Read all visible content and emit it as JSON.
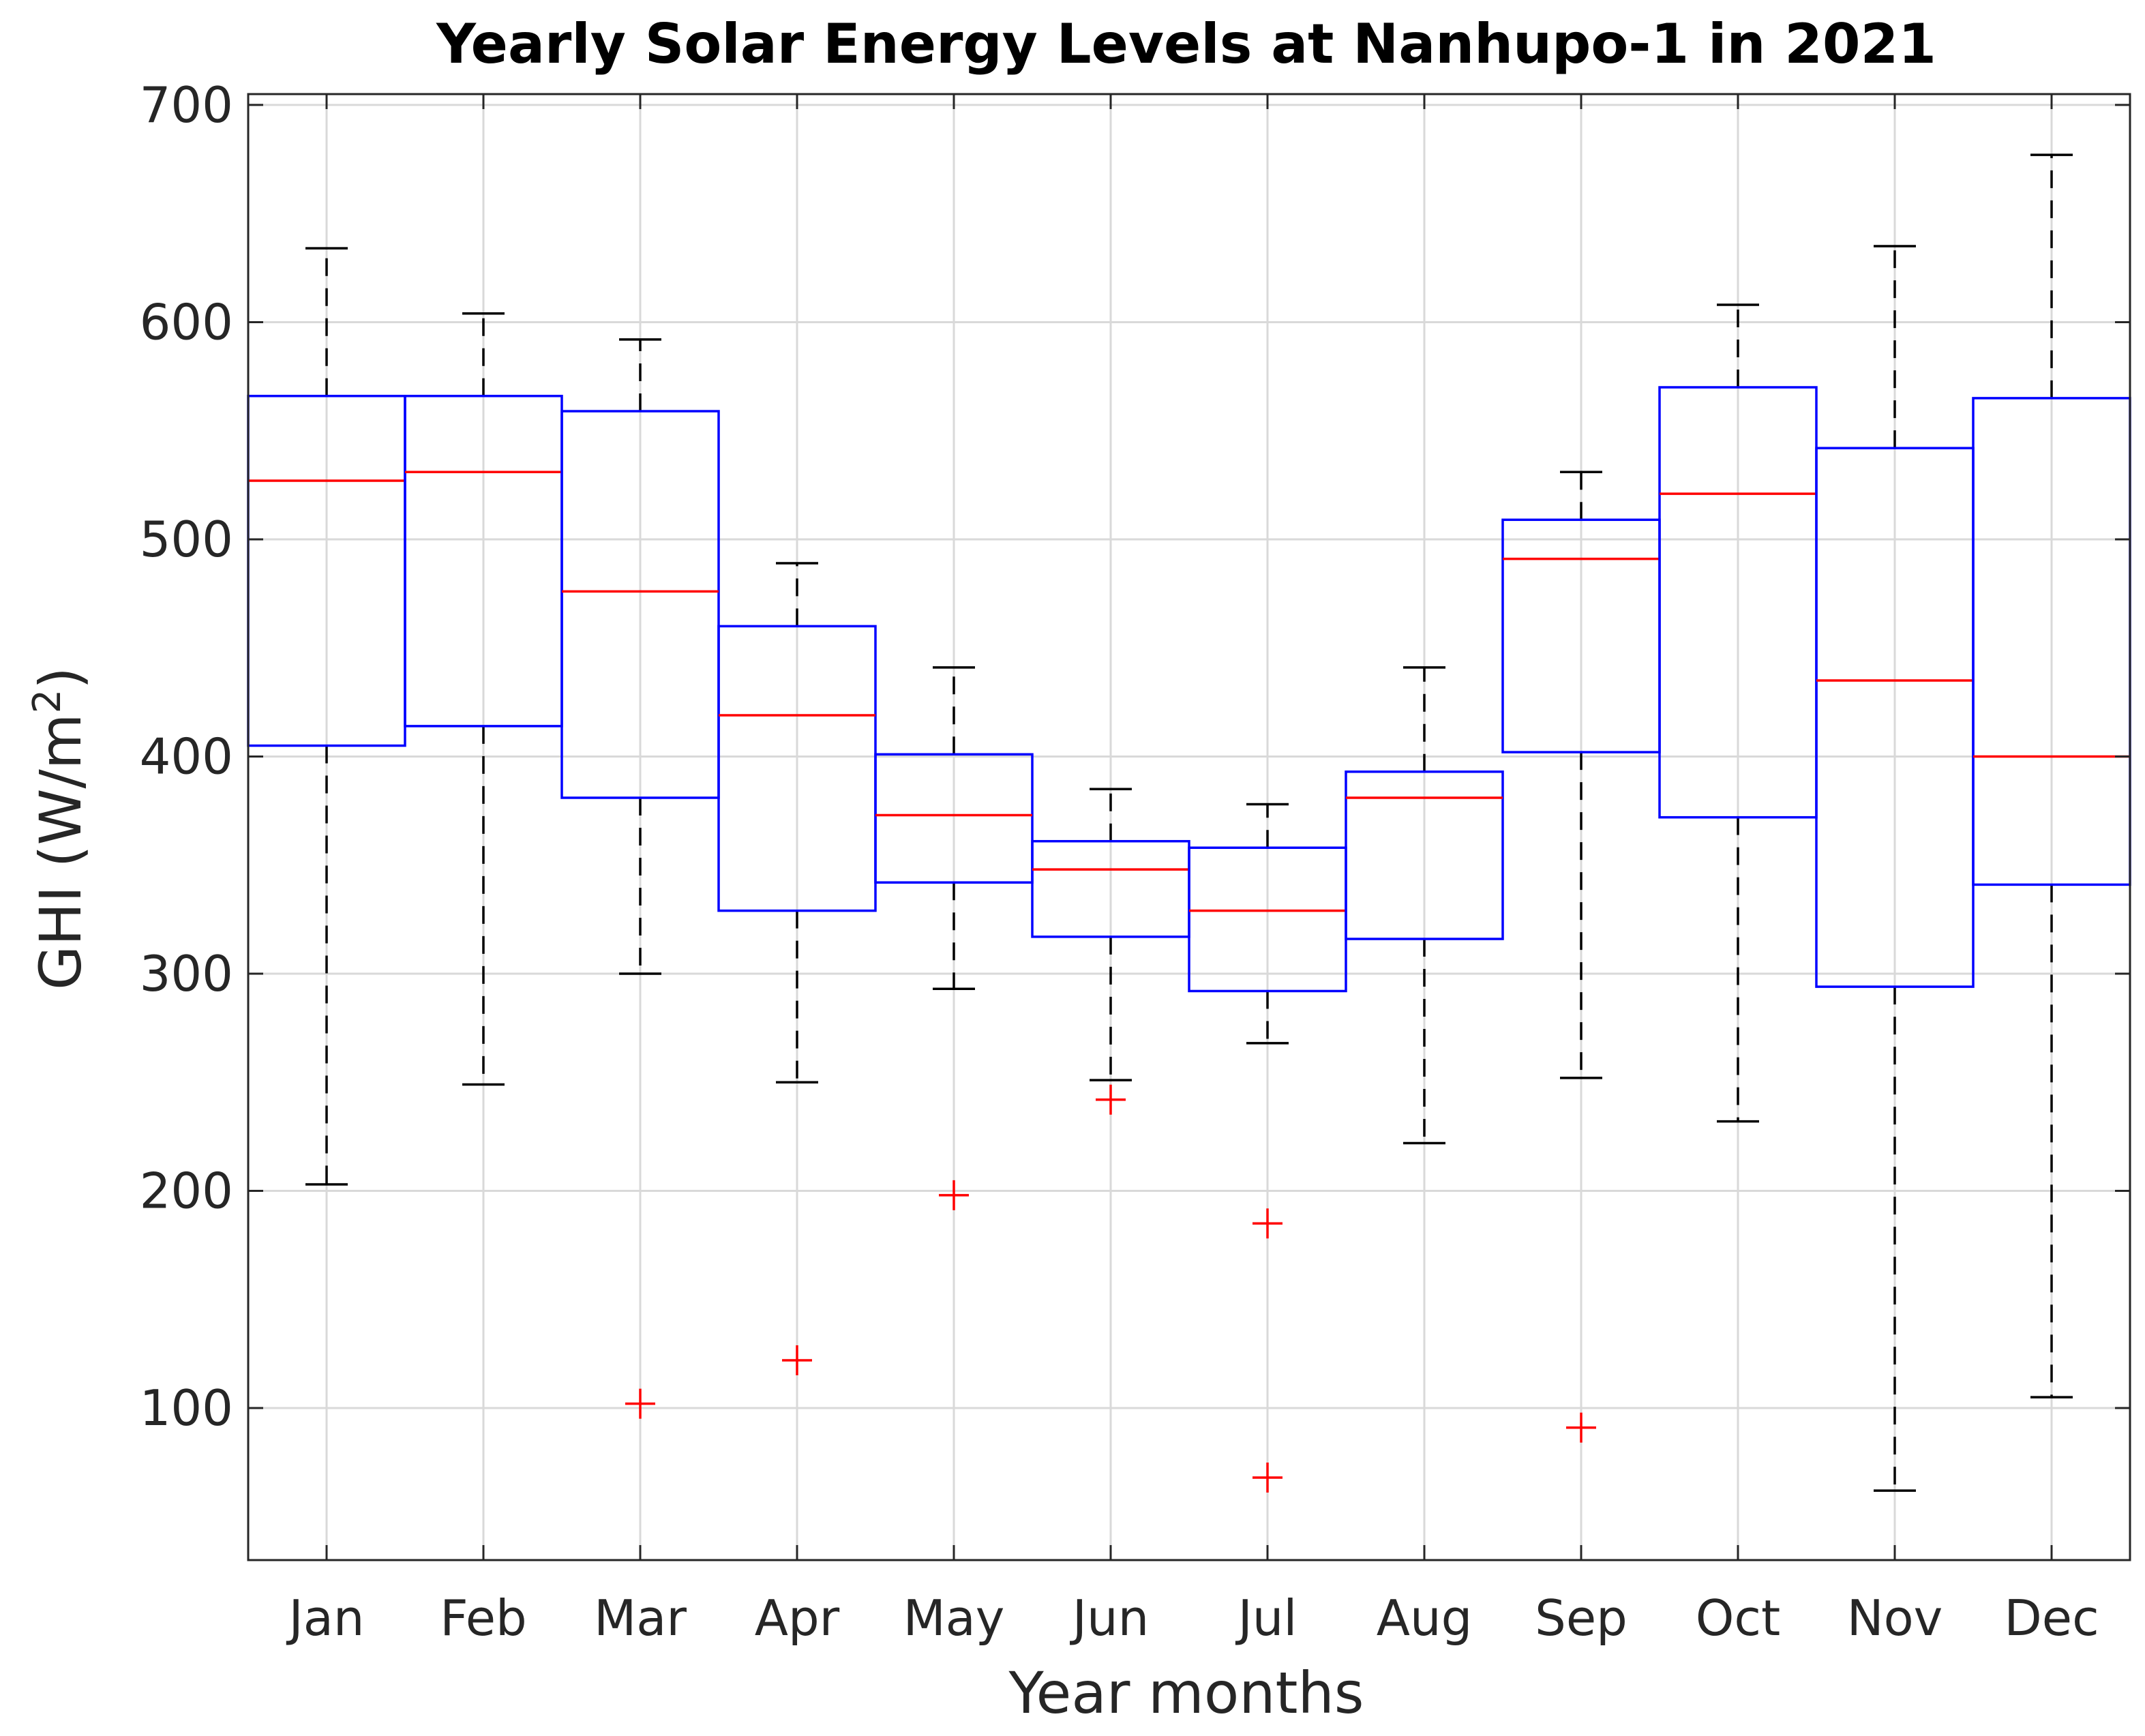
{
  "chart_data": {
    "type": "boxplot",
    "title": "Yearly Solar Energy Levels at Nanhupo-1 in 2021",
    "xlabel": "Year months",
    "ylabel": "GHI (W/m",
    "ylabel_superscript": "2",
    "ylabel_suffix": ")",
    "ylim": [
      30,
      705
    ],
    "yticks": [
      100,
      200,
      300,
      400,
      500,
      600,
      700
    ],
    "yticklabels": [
      "100",
      "200",
      "300",
      "400",
      "500",
      "600",
      "700"
    ],
    "grid": true,
    "categories": [
      "Jan",
      "Feb",
      "Mar",
      "Apr",
      "May",
      "Jun",
      "Jul",
      "Aug",
      "Sep",
      "Oct",
      "Nov",
      "Dec"
    ],
    "boxes": [
      {
        "month": "Jan",
        "lower_whisker": 203,
        "q1": 405,
        "median": 527,
        "q3": 566,
        "upper_whisker": 634,
        "outliers": []
      },
      {
        "month": "Feb",
        "lower_whisker": 249,
        "q1": 414,
        "median": 531,
        "q3": 566,
        "upper_whisker": 604,
        "outliers": []
      },
      {
        "month": "Mar",
        "lower_whisker": 300,
        "q1": 381,
        "median": 476,
        "q3": 559,
        "upper_whisker": 592,
        "outliers": [
          102
        ]
      },
      {
        "month": "Apr",
        "lower_whisker": 250,
        "q1": 329,
        "median": 419,
        "q3": 460,
        "upper_whisker": 489,
        "outliers": [
          122
        ]
      },
      {
        "month": "May",
        "lower_whisker": 293,
        "q1": 342,
        "median": 373,
        "q3": 401,
        "upper_whisker": 441,
        "outliers": [
          198
        ]
      },
      {
        "month": "Jun",
        "lower_whisker": 251,
        "q1": 317,
        "median": 348,
        "q3": 361,
        "upper_whisker": 385,
        "outliers": [
          242
        ]
      },
      {
        "month": "Jul",
        "lower_whisker": 268,
        "q1": 292,
        "median": 329,
        "q3": 358,
        "upper_whisker": 378,
        "outliers": [
          185,
          68
        ]
      },
      {
        "month": "Aug",
        "lower_whisker": 222,
        "q1": 316,
        "median": 381,
        "q3": 393,
        "upper_whisker": 441,
        "outliers": []
      },
      {
        "month": "Sep",
        "lower_whisker": 252,
        "q1": 402,
        "median": 491,
        "q3": 509,
        "upper_whisker": 531,
        "outliers": [
          91
        ]
      },
      {
        "month": "Oct",
        "lower_whisker": 232,
        "q1": 372,
        "median": 521,
        "q3": 570,
        "upper_whisker": 608,
        "outliers": []
      },
      {
        "month": "Nov",
        "lower_whisker": 62,
        "q1": 294,
        "median": 435,
        "q3": 542,
        "upper_whisker": 635,
        "outliers": []
      },
      {
        "month": "Dec",
        "lower_whisker": 105,
        "q1": 341,
        "median": 400,
        "q3": 565,
        "upper_whisker": 677,
        "outliers": []
      }
    ],
    "colors": {
      "box": "#0000ff",
      "median": "#ff0000",
      "outlier": "#ff0000",
      "whisker": "#000000",
      "grid": "#d9d9d9",
      "axis": "#262626"
    }
  }
}
